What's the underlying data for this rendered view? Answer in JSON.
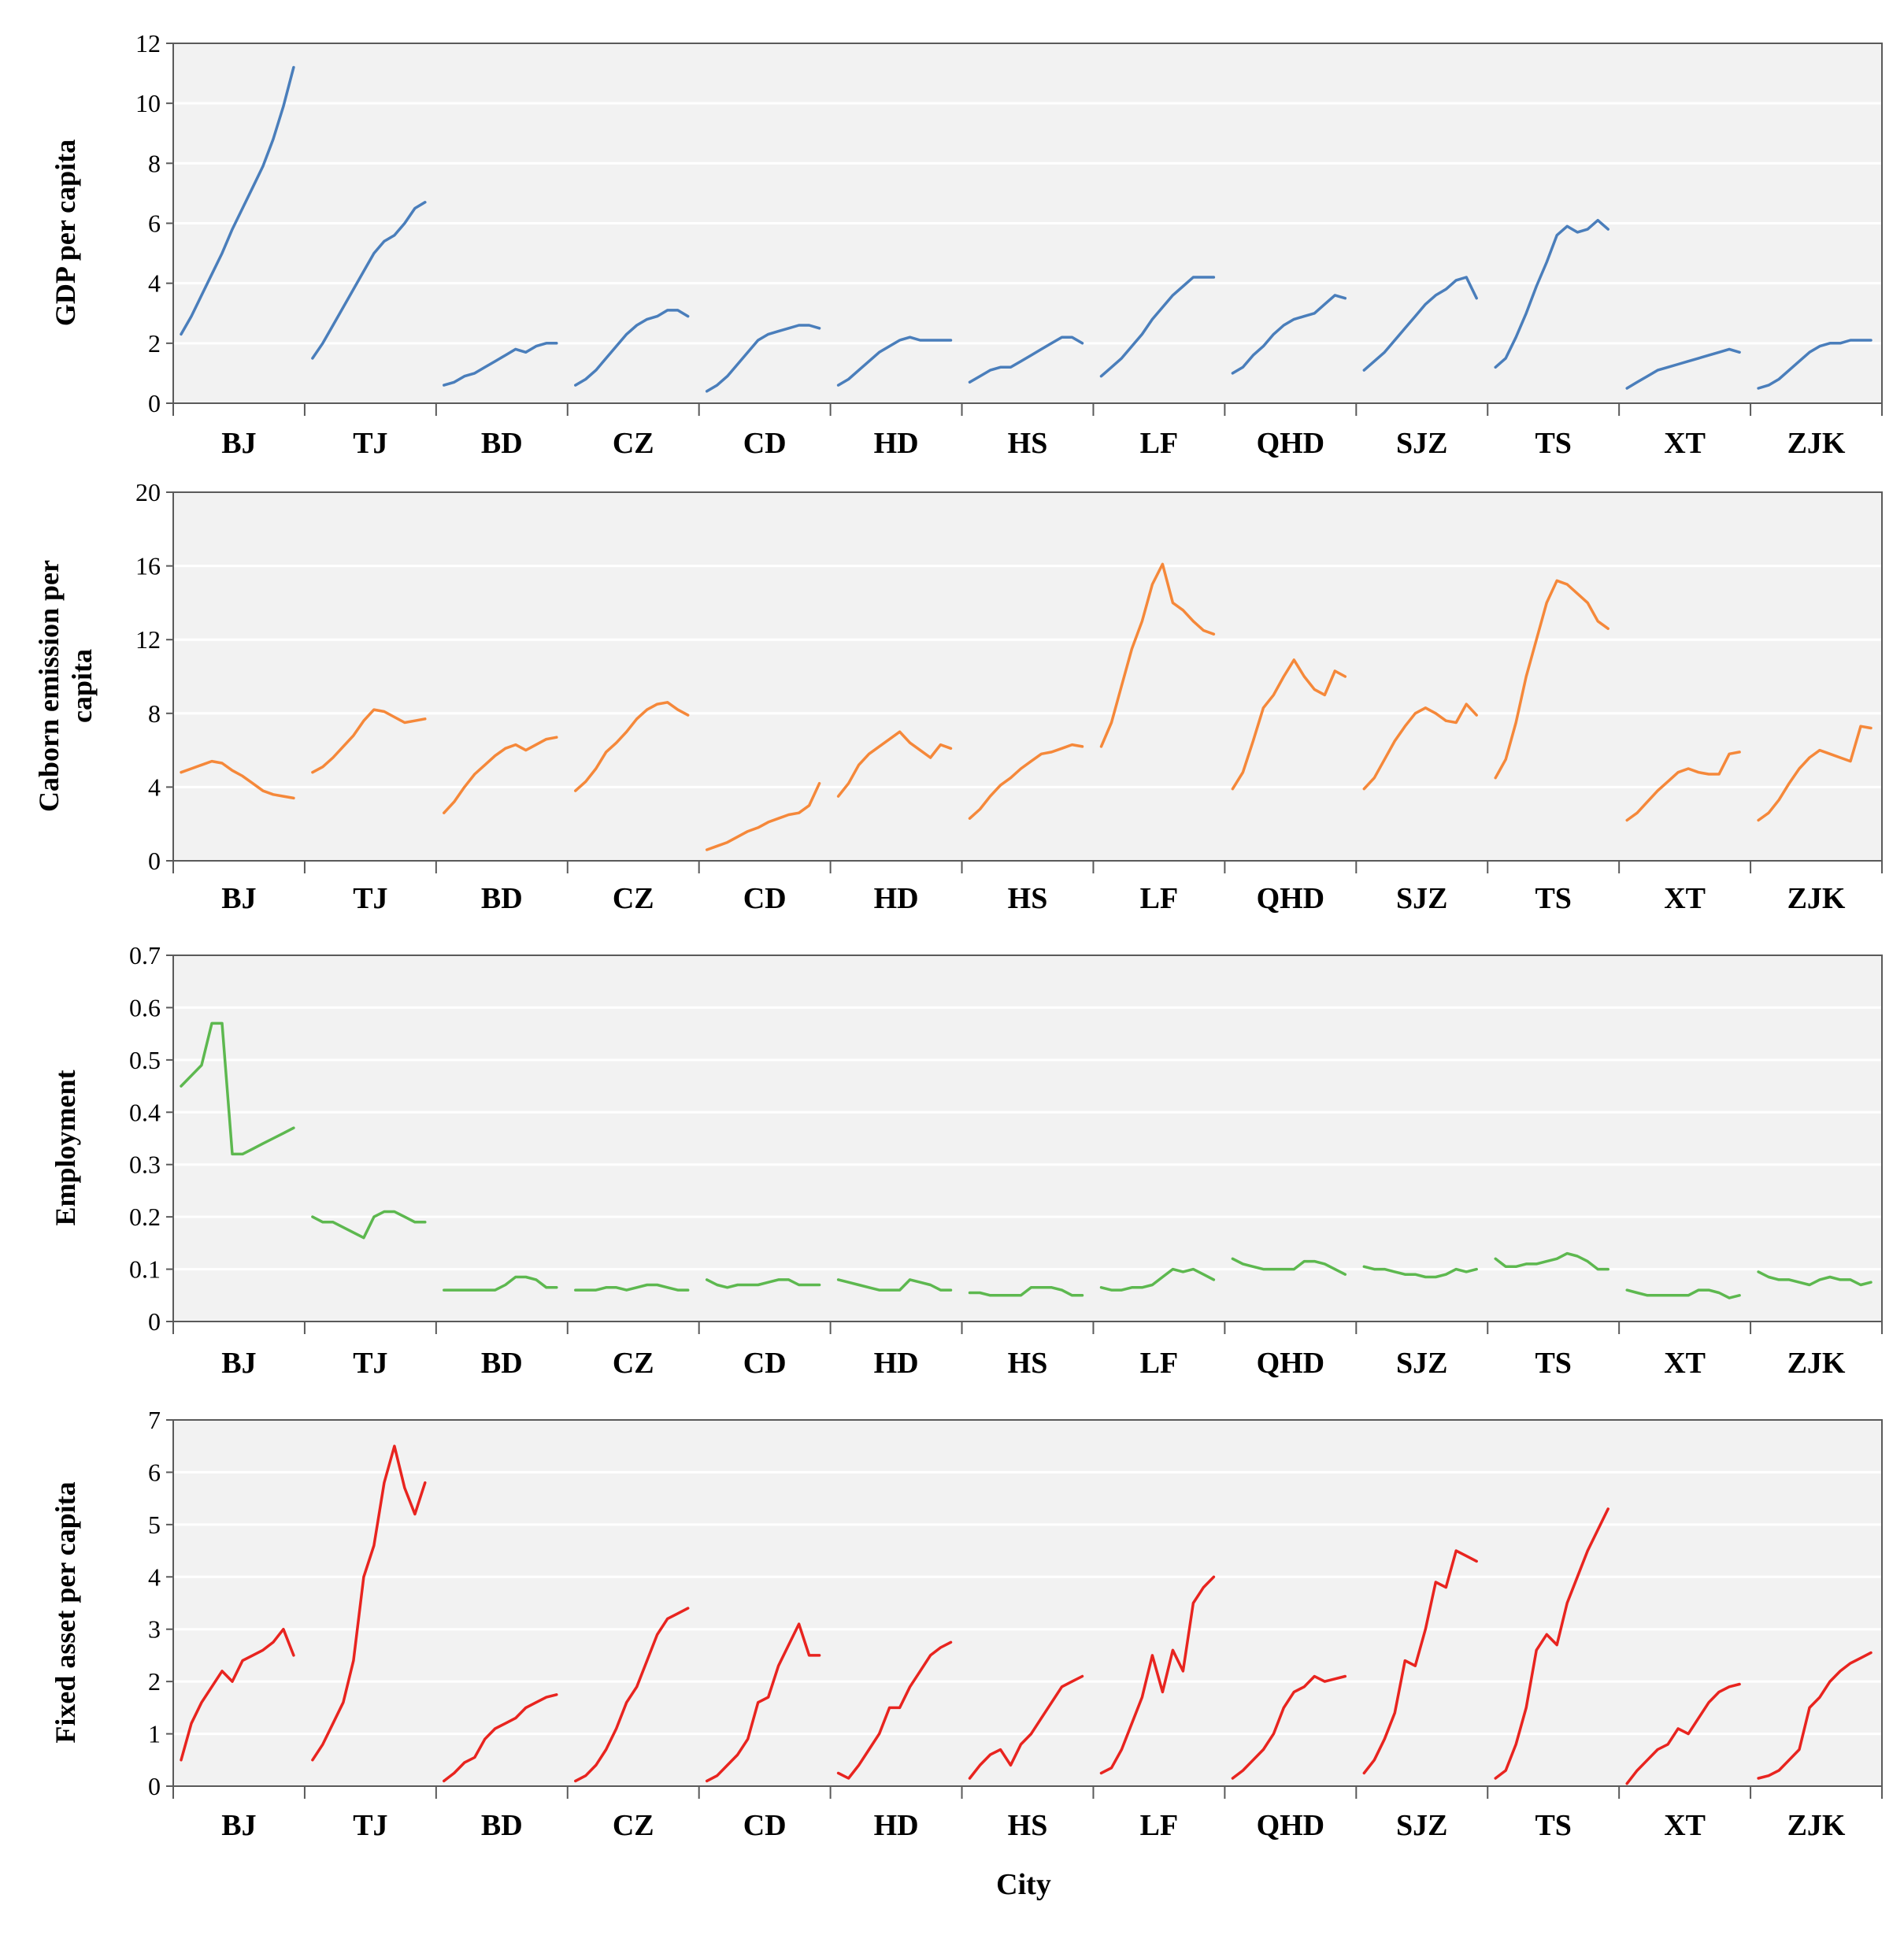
{
  "figure": {
    "xlabel": "City"
  },
  "chart_data": [
    {
      "type": "line",
      "id": "gdp",
      "ylabel": "GDP per capita",
      "ylim": [
        0,
        12
      ],
      "yticks": [
        0,
        2,
        4,
        6,
        8,
        10,
        12
      ],
      "color": "#4a7ebb",
      "grid": true,
      "categories": [
        "BJ",
        "TJ",
        "BD",
        "CZ",
        "CD",
        "HD",
        "HS",
        "LF",
        "QHD",
        "SJZ",
        "TS",
        "XT",
        "ZJK"
      ],
      "series": [
        [
          2.3,
          2.9,
          3.6,
          4.3,
          5.0,
          5.8,
          6.5,
          7.2,
          7.9,
          8.8,
          9.9,
          11.2
        ],
        [
          1.5,
          2.0,
          2.6,
          3.2,
          3.8,
          4.4,
          5.0,
          5.4,
          5.6,
          6.0,
          6.5,
          6.7
        ],
        [
          0.6,
          0.7,
          0.9,
          1.0,
          1.2,
          1.4,
          1.6,
          1.8,
          1.7,
          1.9,
          2.0,
          2.0
        ],
        [
          0.6,
          0.8,
          1.1,
          1.5,
          1.9,
          2.3,
          2.6,
          2.8,
          2.9,
          3.1,
          3.1,
          2.9
        ],
        [
          0.4,
          0.6,
          0.9,
          1.3,
          1.7,
          2.1,
          2.3,
          2.4,
          2.5,
          2.6,
          2.6,
          2.5
        ],
        [
          0.6,
          0.8,
          1.1,
          1.4,
          1.7,
          1.9,
          2.1,
          2.2,
          2.1,
          2.1,
          2.1,
          2.1
        ],
        [
          0.7,
          0.9,
          1.1,
          1.2,
          1.2,
          1.4,
          1.6,
          1.8,
          2.0,
          2.2,
          2.2,
          2.0
        ],
        [
          0.9,
          1.2,
          1.5,
          1.9,
          2.3,
          2.8,
          3.2,
          3.6,
          3.9,
          4.2,
          4.2,
          4.2
        ],
        [
          1.0,
          1.2,
          1.6,
          1.9,
          2.3,
          2.6,
          2.8,
          2.9,
          3.0,
          3.3,
          3.6,
          3.5
        ],
        [
          1.1,
          1.4,
          1.7,
          2.1,
          2.5,
          2.9,
          3.3,
          3.6,
          3.8,
          4.1,
          4.2,
          3.5
        ],
        [
          1.2,
          1.5,
          2.2,
          3.0,
          3.9,
          4.7,
          5.6,
          5.9,
          5.7,
          5.8,
          6.1,
          5.8
        ],
        [
          0.5,
          0.7,
          0.9,
          1.1,
          1.2,
          1.3,
          1.4,
          1.5,
          1.6,
          1.7,
          1.8,
          1.7
        ],
        [
          0.5,
          0.6,
          0.8,
          1.1,
          1.4,
          1.7,
          1.9,
          2.0,
          2.0,
          2.1,
          2.1,
          2.1
        ]
      ]
    },
    {
      "type": "line",
      "id": "carbon",
      "ylabel_lines": [
        "Caborn emission per",
        "capita"
      ],
      "ylim": [
        0,
        20
      ],
      "yticks": [
        0,
        4,
        8,
        12,
        16,
        20
      ],
      "color": "#f5883a",
      "grid": true,
      "categories": [
        "BJ",
        "TJ",
        "BD",
        "CZ",
        "CD",
        "HD",
        "HS",
        "LF",
        "QHD",
        "SJZ",
        "TS",
        "XT",
        "ZJK"
      ],
      "series": [
        [
          4.8,
          5.0,
          5.2,
          5.4,
          5.3,
          4.9,
          4.6,
          4.2,
          3.8,
          3.6,
          3.5,
          3.4
        ],
        [
          4.8,
          5.1,
          5.6,
          6.2,
          6.8,
          7.6,
          8.2,
          8.1,
          7.8,
          7.5,
          7.6,
          7.7
        ],
        [
          2.6,
          3.2,
          4.0,
          4.7,
          5.2,
          5.7,
          6.1,
          6.3,
          6.0,
          6.3,
          6.6,
          6.7
        ],
        [
          3.8,
          4.3,
          5.0,
          5.9,
          6.4,
          7.0,
          7.7,
          8.2,
          8.5,
          8.6,
          8.2,
          7.9
        ],
        [
          0.6,
          0.8,
          1.0,
          1.3,
          1.6,
          1.8,
          2.1,
          2.3,
          2.5,
          2.6,
          3.0,
          4.2
        ],
        [
          3.5,
          4.2,
          5.2,
          5.8,
          6.2,
          6.6,
          7.0,
          6.4,
          6.0,
          5.6,
          6.3,
          6.1
        ],
        [
          2.3,
          2.8,
          3.5,
          4.1,
          4.5,
          5.0,
          5.4,
          5.8,
          5.9,
          6.1,
          6.3,
          6.2
        ],
        [
          6.2,
          7.5,
          9.5,
          11.5,
          13.0,
          15.0,
          16.1,
          14.0,
          13.6,
          13.0,
          12.5,
          12.3
        ],
        [
          3.9,
          4.8,
          6.5,
          8.3,
          9.0,
          10.0,
          10.9,
          10.0,
          9.3,
          9.0,
          10.3,
          10.0
        ],
        [
          3.9,
          4.5,
          5.5,
          6.5,
          7.3,
          8.0,
          8.3,
          8.0,
          7.6,
          7.5,
          8.5,
          7.9
        ],
        [
          4.5,
          5.5,
          7.5,
          10.0,
          12.0,
          14.0,
          15.2,
          15.0,
          14.5,
          14.0,
          13.0,
          12.6
        ],
        [
          2.2,
          2.6,
          3.2,
          3.8,
          4.3,
          4.8,
          5.0,
          4.8,
          4.7,
          4.7,
          5.8,
          5.9
        ],
        [
          2.2,
          2.6,
          3.3,
          4.2,
          5.0,
          5.6,
          6.0,
          5.8,
          5.6,
          5.4,
          7.3,
          7.2
        ]
      ]
    },
    {
      "type": "line",
      "id": "employment",
      "ylabel": "Employment",
      "ylim": [
        0,
        0.7
      ],
      "yticks": [
        0,
        0.1,
        0.2,
        0.3,
        0.4,
        0.5,
        0.6,
        0.7
      ],
      "color": "#5db84f",
      "grid": true,
      "categories": [
        "BJ",
        "TJ",
        "BD",
        "CZ",
        "CD",
        "HD",
        "HS",
        "LF",
        "QHD",
        "SJZ",
        "TS",
        "XT",
        "ZJK"
      ],
      "series": [
        [
          0.45,
          0.47,
          0.49,
          0.57,
          0.57,
          0.32,
          0.32,
          0.33,
          0.34,
          0.35,
          0.36,
          0.37
        ],
        [
          0.2,
          0.19,
          0.19,
          0.18,
          0.17,
          0.16,
          0.2,
          0.21,
          0.21,
          0.2,
          0.19,
          0.19
        ],
        [
          0.06,
          0.06,
          0.06,
          0.06,
          0.06,
          0.06,
          0.07,
          0.085,
          0.085,
          0.08,
          0.065,
          0.065
        ],
        [
          0.06,
          0.06,
          0.06,
          0.065,
          0.065,
          0.06,
          0.065,
          0.07,
          0.07,
          0.065,
          0.06,
          0.06
        ],
        [
          0.08,
          0.07,
          0.065,
          0.07,
          0.07,
          0.07,
          0.075,
          0.08,
          0.08,
          0.07,
          0.07,
          0.07
        ],
        [
          0.08,
          0.075,
          0.07,
          0.065,
          0.06,
          0.06,
          0.06,
          0.08,
          0.075,
          0.07,
          0.06,
          0.06
        ],
        [
          0.055,
          0.055,
          0.05,
          0.05,
          0.05,
          0.05,
          0.065,
          0.065,
          0.065,
          0.06,
          0.05,
          0.05
        ],
        [
          0.065,
          0.06,
          0.06,
          0.065,
          0.065,
          0.07,
          0.085,
          0.1,
          0.095,
          0.1,
          0.09,
          0.08
        ],
        [
          0.12,
          0.11,
          0.105,
          0.1,
          0.1,
          0.1,
          0.1,
          0.115,
          0.115,
          0.11,
          0.1,
          0.09
        ],
        [
          0.105,
          0.1,
          0.1,
          0.095,
          0.09,
          0.09,
          0.085,
          0.085,
          0.09,
          0.1,
          0.095,
          0.1
        ],
        [
          0.12,
          0.105,
          0.105,
          0.11,
          0.11,
          0.115,
          0.12,
          0.13,
          0.125,
          0.115,
          0.1,
          0.1
        ],
        [
          0.06,
          0.055,
          0.05,
          0.05,
          0.05,
          0.05,
          0.05,
          0.06,
          0.06,
          0.055,
          0.045,
          0.05
        ],
        [
          0.095,
          0.085,
          0.08,
          0.08,
          0.075,
          0.07,
          0.08,
          0.085,
          0.08,
          0.08,
          0.07,
          0.075
        ]
      ]
    },
    {
      "type": "line",
      "id": "fixed_asset",
      "ylabel": "Fixed asset per capita",
      "ylim": [
        0,
        7
      ],
      "yticks": [
        0,
        1,
        2,
        3,
        4,
        5,
        6,
        7
      ],
      "color": "#e8241f",
      "grid": true,
      "categories": [
        "BJ",
        "TJ",
        "BD",
        "CZ",
        "CD",
        "HD",
        "HS",
        "LF",
        "QHD",
        "SJZ",
        "TS",
        "XT",
        "ZJK"
      ],
      "series": [
        [
          0.5,
          1.2,
          1.6,
          1.9,
          2.2,
          2.0,
          2.4,
          2.5,
          2.6,
          2.75,
          3.0,
          2.5
        ],
        [
          0.5,
          0.8,
          1.2,
          1.6,
          2.4,
          4.0,
          4.6,
          5.8,
          6.5,
          5.7,
          5.2,
          5.8
        ],
        [
          0.1,
          0.25,
          0.45,
          0.55,
          0.9,
          1.1,
          1.2,
          1.3,
          1.5,
          1.6,
          1.7,
          1.75
        ],
        [
          0.1,
          0.2,
          0.4,
          0.7,
          1.1,
          1.6,
          1.9,
          2.4,
          2.9,
          3.2,
          3.3,
          3.4
        ],
        [
          0.1,
          0.2,
          0.4,
          0.6,
          0.9,
          1.6,
          1.7,
          2.3,
          2.7,
          3.1,
          2.5,
          2.5
        ],
        [
          0.25,
          0.15,
          0.4,
          0.7,
          1.0,
          1.5,
          1.5,
          1.9,
          2.2,
          2.5,
          2.65,
          2.75
        ],
        [
          0.15,
          0.4,
          0.6,
          0.7,
          0.4,
          0.8,
          1.0,
          1.3,
          1.6,
          1.9,
          2.0,
          2.1
        ],
        [
          0.25,
          0.35,
          0.7,
          1.2,
          1.7,
          2.5,
          1.8,
          2.6,
          2.2,
          3.5,
          3.8,
          4.0
        ],
        [
          0.15,
          0.3,
          0.5,
          0.7,
          1.0,
          1.5,
          1.8,
          1.9,
          2.1,
          2.0,
          2.05,
          2.1
        ],
        [
          0.25,
          0.5,
          0.9,
          1.4,
          2.4,
          2.3,
          3.0,
          3.9,
          3.8,
          4.5,
          4.4,
          4.3
        ],
        [
          0.15,
          0.3,
          0.8,
          1.5,
          2.6,
          2.9,
          2.7,
          3.5,
          4.0,
          4.5,
          4.9,
          5.3
        ],
        [
          0.05,
          0.3,
          0.5,
          0.7,
          0.8,
          1.1,
          1.0,
          1.3,
          1.6,
          1.8,
          1.9,
          1.95
        ],
        [
          0.15,
          0.2,
          0.3,
          0.5,
          0.7,
          1.5,
          1.7,
          2.0,
          2.2,
          2.35,
          2.45,
          2.55
        ]
      ]
    }
  ]
}
